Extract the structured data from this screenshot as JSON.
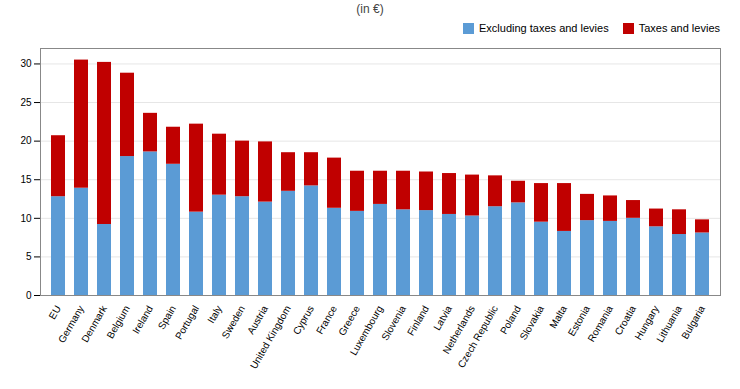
{
  "chart_data": {
    "type": "bar",
    "title": "(in €)",
    "categories": [
      "EU",
      "Germany",
      "Denmark",
      "Belgium",
      "Ireland",
      "Spain",
      "Portugal",
      "Italy",
      "Sweden",
      "Austria",
      "United Kingdom",
      "Cyprus",
      "France",
      "Greece",
      "Luxembourg",
      "Slovenia",
      "Finland",
      "Latvia",
      "Netherlands",
      "Czech Republic",
      "Poland",
      "Slovakia",
      "Malta",
      "Estonia",
      "Romania",
      "Croatia",
      "Hungary",
      "Lithuania",
      "Bulgaria"
    ],
    "series": [
      {
        "name": "Excluding taxes and levies",
        "color": "#5B9BD5",
        "values": [
          12.8,
          13.9,
          9.2,
          18.0,
          18.6,
          17.0,
          10.8,
          13.0,
          12.8,
          12.1,
          13.5,
          14.2,
          11.3,
          10.9,
          11.8,
          11.1,
          11.0,
          10.5,
          10.3,
          11.5,
          12.0,
          9.5,
          8.3,
          9.7,
          9.6,
          10.0,
          8.9,
          7.9,
          8.1
        ]
      },
      {
        "name": "Taxes and levies",
        "color": "#C00000",
        "values": [
          7.9,
          16.6,
          21.0,
          10.8,
          5.0,
          4.8,
          11.4,
          7.9,
          7.2,
          7.8,
          5.0,
          4.3,
          6.5,
          5.2,
          4.3,
          5.0,
          5.0,
          5.3,
          5.3,
          4.0,
          2.8,
          5.0,
          6.2,
          3.4,
          3.3,
          2.3,
          2.3,
          3.2,
          1.7
        ]
      }
    ],
    "stacked": true,
    "ylim": [
      0,
      32
    ],
    "yticks": [
      0,
      5,
      10,
      15,
      20,
      25,
      30
    ],
    "grid": true,
    "legend": "upper right"
  }
}
